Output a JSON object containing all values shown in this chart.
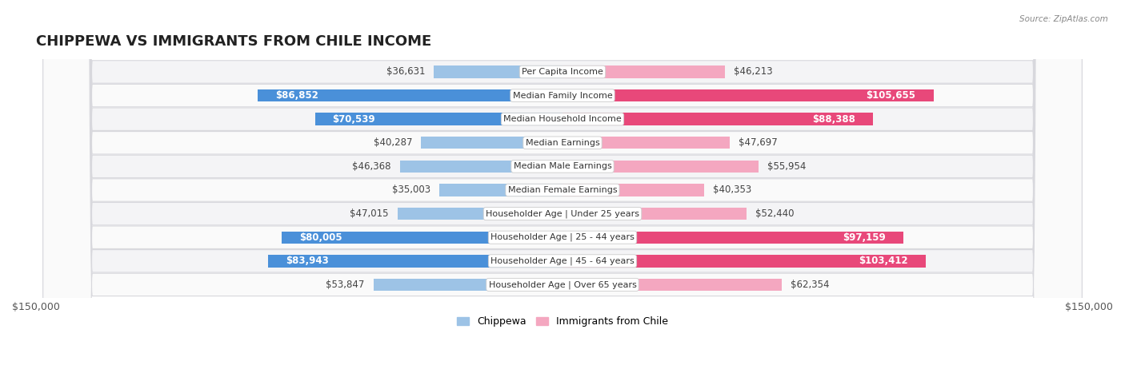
{
  "title": "Chippewa vs Immigrants from Chile Income",
  "title_display": "CHIPPEWA VS IMMIGRANTS FROM CHILE INCOME",
  "source": "Source: ZipAtlas.com",
  "categories": [
    "Per Capita Income",
    "Median Family Income",
    "Median Household Income",
    "Median Earnings",
    "Median Male Earnings",
    "Median Female Earnings",
    "Householder Age | Under 25 years",
    "Householder Age | 25 - 44 years",
    "Householder Age | 45 - 64 years",
    "Householder Age | Over 65 years"
  ],
  "chippewa_values": [
    36631,
    86852,
    70539,
    40287,
    46368,
    35003,
    47015,
    80005,
    83943,
    53847
  ],
  "chile_values": [
    46213,
    105655,
    88388,
    47697,
    55954,
    40353,
    52440,
    97159,
    103412,
    62354
  ],
  "chippewa_labels": [
    "$36,631",
    "$86,852",
    "$70,539",
    "$40,287",
    "$46,368",
    "$35,003",
    "$47,015",
    "$80,005",
    "$83,943",
    "$53,847"
  ],
  "chile_labels": [
    "$46,213",
    "$105,655",
    "$88,388",
    "$47,697",
    "$55,954",
    "$40,353",
    "$52,440",
    "$97,159",
    "$103,412",
    "$62,354"
  ],
  "xlim": 150000,
  "xtick_label_left": "$150,000",
  "xtick_label_right": "$150,000",
  "color_chippewa_dark": "#4a90d9",
  "color_chippewa_light": "#9dc3e6",
  "color_chile_dark": "#e8487a",
  "color_chile_light": "#f4a7c0",
  "bar_height": 0.52,
  "row_bg_light": "#f4f4f6",
  "row_bg_white": "#fafafa",
  "legend_label_chippewa": "Chippewa",
  "legend_label_chile": "Immigrants from Chile",
  "large_value_threshold": 65000,
  "label_fontsize": 8.5,
  "cat_fontsize": 8.0,
  "title_fontsize": 13
}
